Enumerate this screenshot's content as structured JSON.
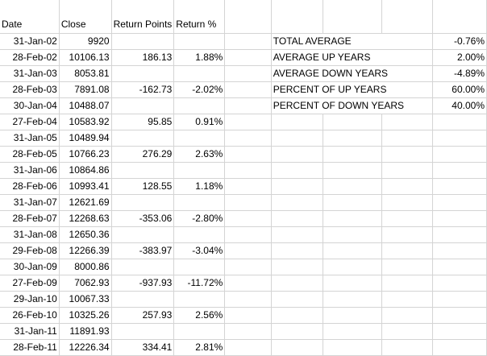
{
  "headers": {
    "date": "Date",
    "close": "Close",
    "return_points": "Return Points",
    "return_pct": "Return %"
  },
  "rows": [
    {
      "date": "31-Jan-02",
      "close": "9920",
      "points": "",
      "pct": ""
    },
    {
      "date": "28-Feb-02",
      "close": "10106.13",
      "points": "186.13",
      "pct": "1.88%"
    },
    {
      "date": "31-Jan-03",
      "close": "8053.81",
      "points": "",
      "pct": ""
    },
    {
      "date": "28-Feb-03",
      "close": "7891.08",
      "points": "-162.73",
      "pct": "-2.02%"
    },
    {
      "date": "30-Jan-04",
      "close": "10488.07",
      "points": "",
      "pct": ""
    },
    {
      "date": "27-Feb-04",
      "close": "10583.92",
      "points": "95.85",
      "pct": "0.91%"
    },
    {
      "date": "31-Jan-05",
      "close": "10489.94",
      "points": "",
      "pct": ""
    },
    {
      "date": "28-Feb-05",
      "close": "10766.23",
      "points": "276.29",
      "pct": "2.63%"
    },
    {
      "date": "31-Jan-06",
      "close": "10864.86",
      "points": "",
      "pct": ""
    },
    {
      "date": "28-Feb-06",
      "close": "10993.41",
      "points": "128.55",
      "pct": "1.18%"
    },
    {
      "date": "31-Jan-07",
      "close": "12621.69",
      "points": "",
      "pct": ""
    },
    {
      "date": "28-Feb-07",
      "close": "12268.63",
      "points": "-353.06",
      "pct": "-2.80%"
    },
    {
      "date": "31-Jan-08",
      "close": "12650.36",
      "points": "",
      "pct": ""
    },
    {
      "date": "29-Feb-08",
      "close": "12266.39",
      "points": "-383.97",
      "pct": "-3.04%"
    },
    {
      "date": "30-Jan-09",
      "close": "8000.86",
      "points": "",
      "pct": ""
    },
    {
      "date": "27-Feb-09",
      "close": "7062.93",
      "points": "-937.93",
      "pct": "-11.72%"
    },
    {
      "date": "29-Jan-10",
      "close": "10067.33",
      "points": "",
      "pct": ""
    },
    {
      "date": "26-Feb-10",
      "close": "10325.26",
      "points": "257.93",
      "pct": "2.56%"
    },
    {
      "date": "31-Jan-11",
      "close": "11891.93",
      "points": "",
      "pct": ""
    },
    {
      "date": "28-Feb-11",
      "close": "12226.34",
      "points": "334.41",
      "pct": "2.81%"
    }
  ],
  "summary": [
    {
      "label": "TOTAL AVERAGE",
      "value": "-0.76%"
    },
    {
      "label": "AVERAGE UP YEARS",
      "value": "2.00%"
    },
    {
      "label": "AVERAGE DOWN YEARS",
      "value": "-4.89%"
    },
    {
      "label": "PERCENT OF UP YEARS",
      "value": "60.00%"
    },
    {
      "label": "PERCENT OF DOWN YEARS",
      "value": "40.00%"
    }
  ]
}
